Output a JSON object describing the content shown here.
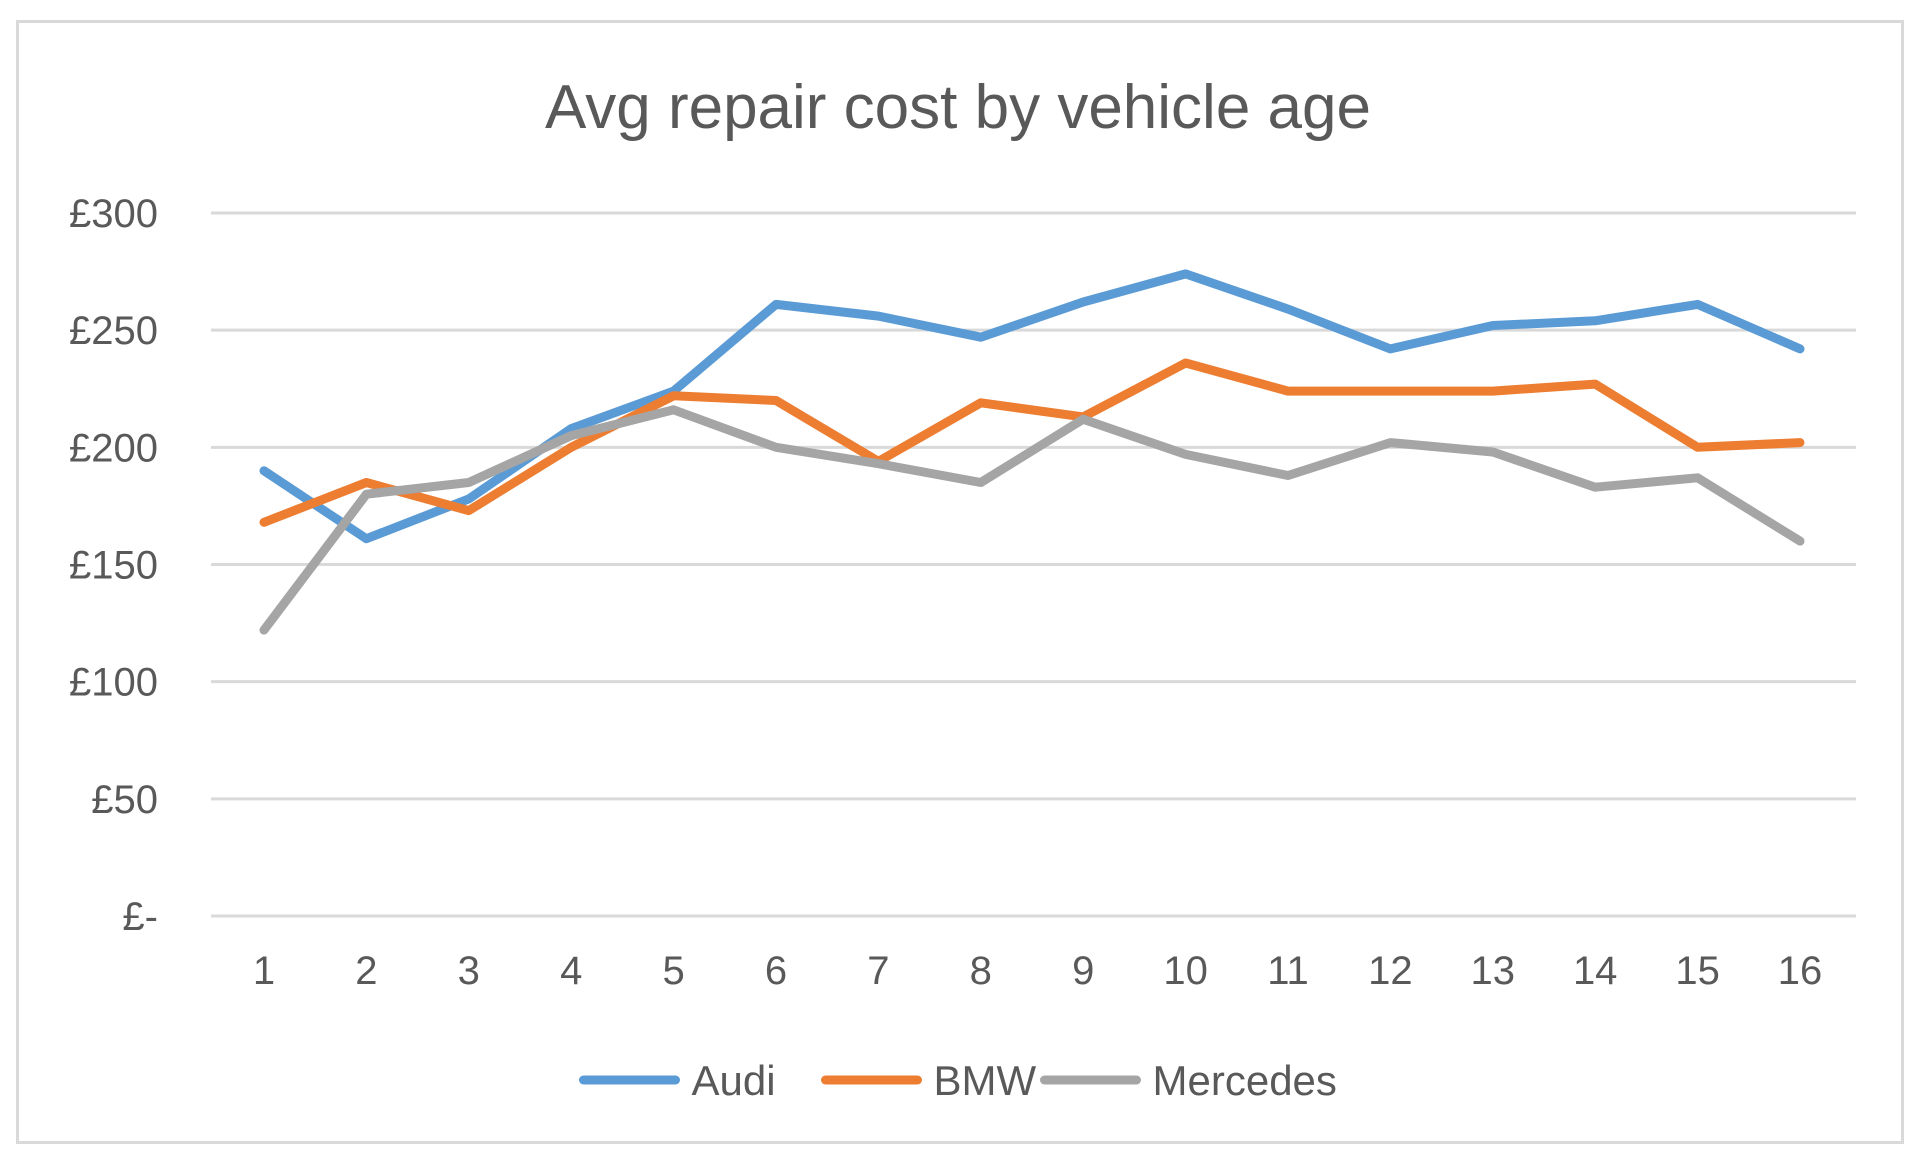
{
  "chart_data": {
    "type": "line",
    "title": "Avg repair cost by vehicle age",
    "xlabel": "",
    "ylabel": "",
    "categories": [
      "1",
      "2",
      "3",
      "4",
      "5",
      "6",
      "7",
      "8",
      "9",
      "10",
      "11",
      "12",
      "13",
      "14",
      "15",
      "16"
    ],
    "ylim": [
      0,
      300
    ],
    "yticks": [
      0,
      50,
      100,
      150,
      200,
      250,
      300
    ],
    "ytick_labels": [
      "£-",
      "£50",
      "£100",
      "£150",
      "£200",
      "£250",
      "£300"
    ],
    "grid": true,
    "legend_position": "bottom",
    "series": [
      {
        "name": "Audi",
        "color": "#5b9bd5",
        "values": [
          190,
          161,
          178,
          208,
          224,
          261,
          256,
          247,
          262,
          274,
          259,
          242,
          252,
          254,
          261,
          242
        ]
      },
      {
        "name": "BMW",
        "color": "#ed7d31",
        "values": [
          168,
          185,
          173,
          200,
          222,
          220,
          194,
          219,
          213,
          236,
          224,
          224,
          224,
          227,
          200,
          202
        ]
      },
      {
        "name": "Mercedes",
        "color": "#a5a5a5",
        "values": [
          122,
          180,
          185,
          205,
          216,
          200,
          193,
          185,
          212,
          197,
          188,
          202,
          198,
          183,
          187,
          160
        ]
      }
    ]
  }
}
